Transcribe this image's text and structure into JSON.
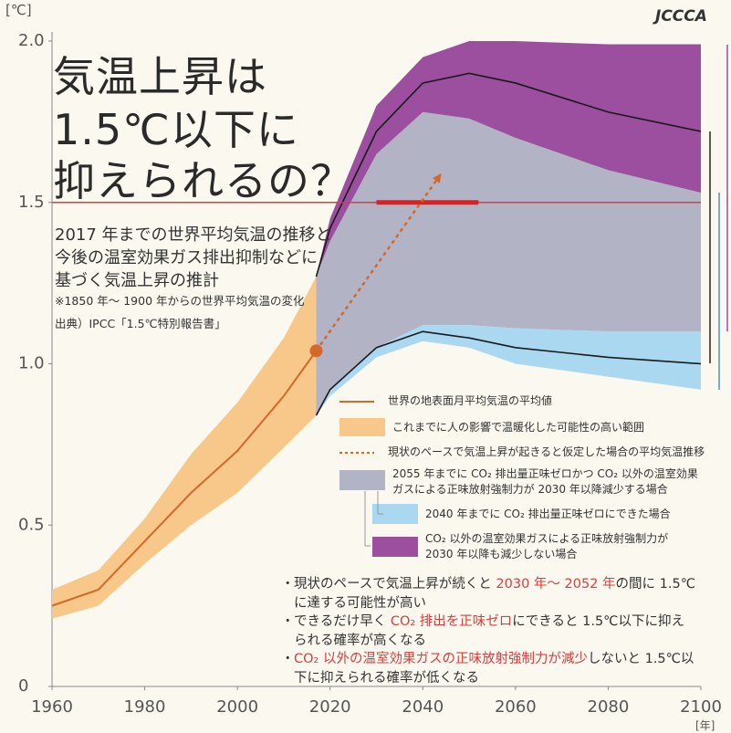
{
  "logo": "JCCCA",
  "chart_data": {
    "type": "line",
    "title": [
      "気温上昇は",
      "1.5℃以下に",
      "抑えられるの？"
    ],
    "subtitle": [
      "2017 年までの世界平均気温の推移と",
      "今後の温室効果ガス排出抑制などに",
      "基づく気温上昇の推計"
    ],
    "note": "※1850 年～ 1900 年からの世界平均気温の変化",
    "source": "出典）IPCC「1.5℃特別報告書」",
    "y_unit": "[℃]",
    "x_unit": "[年]",
    "xlim": [
      1960,
      2100
    ],
    "xticks": [
      1960,
      1980,
      2000,
      2020,
      2040,
      2060,
      2080,
      2100
    ],
    "ylim": [
      0,
      2
    ],
    "yticks": [
      0,
      0.5,
      {
        "value": 1,
        "label": "1.0"
      },
      1.5,
      {
        "value": 2,
        "label": "2.0"
      }
    ],
    "series": [
      {
        "name": "世界の地表面月平均気温の平均値",
        "color": "#d2692a",
        "x": [
          1960,
          1970,
          1980,
          1990,
          2000,
          2010,
          2017
        ],
        "values": [
          0.25,
          0.3,
          0.45,
          0.6,
          0.73,
          0.9,
          1.04
        ]
      },
      {
        "name": "現状のペースで気温上昇が起きると仮定した場合の平均気温推移",
        "color": "#d2692a",
        "x": [
          2017,
          2044
        ],
        "values": [
          1.04,
          1.59
        ]
      }
    ],
    "bands": [
      {
        "name": "これまでに人の影響で温暖化した可能性の高い範囲",
        "color": "#f8c88a",
        "x": [
          1960,
          1970,
          1980,
          1990,
          2000,
          2010,
          2017
        ],
        "lower": [
          0.21,
          0.25,
          0.38,
          0.5,
          0.6,
          0.74,
          0.84
        ],
        "upper": [
          0.3,
          0.36,
          0.52,
          0.72,
          0.88,
          1.08,
          1.27
        ]
      },
      {
        "name": "2055 年までに CO₂ 排出量正味ゼロかつ CO₂ 以外の温室効果ガスによる正味放射強制力が 2030 年以降減少する場合",
        "color": "#b2b3c4",
        "x": [
          2017,
          2020,
          2030,
          2040,
          2050,
          2060,
          2080,
          2100
        ],
        "lower": [
          0.84,
          0.92,
          1.05,
          1.12,
          1.12,
          1.11,
          1.1,
          1.1
        ],
        "upper": [
          1.27,
          1.38,
          1.65,
          1.78,
          1.76,
          1.7,
          1.6,
          1.53
        ]
      },
      {
        "name": "2040 年までに CO₂ 排出量正味ゼロにできた場合",
        "color": "#a9d8f0",
        "x": [
          2017,
          2020,
          2030,
          2040,
          2050,
          2060,
          2080,
          2100
        ],
        "lower": [
          0.84,
          0.9,
          1.02,
          1.07,
          1.05,
          1.0,
          0.96,
          0.92
        ],
        "upper": [
          0.84,
          0.92,
          1.05,
          1.12,
          1.12,
          1.11,
          1.1,
          1.1
        ]
      },
      {
        "name": "CO₂ 以外の温室効果ガスによる正味放射強制力が 2030 年以降も減少しない場合",
        "color": "#9b4f9e",
        "x": [
          2017,
          2020,
          2030,
          2040,
          2050,
          2060,
          2080,
          2100
        ],
        "lower": [
          1.27,
          1.38,
          1.65,
          1.78,
          1.76,
          1.7,
          1.6,
          1.53
        ],
        "upper": [
          1.27,
          1.45,
          1.8,
          1.95,
          2.0,
          2.0,
          1.99,
          1.99
        ]
      }
    ],
    "boundary_lines": [
      {
        "color": "#1a1a1a",
        "x": [
          2017,
          2020,
          2030,
          2040,
          2050,
          2060,
          2080,
          2100
        ],
        "values": [
          1.27,
          1.42,
          1.72,
          1.87,
          1.9,
          1.87,
          1.78,
          1.72
        ]
      },
      {
        "color": "#1a1a1a",
        "x": [
          2017,
          2020,
          2030,
          2040,
          2050,
          2060,
          2080,
          2100
        ],
        "values": [
          0.84,
          0.92,
          1.05,
          1.1,
          1.08,
          1.05,
          1.02,
          1.0
        ]
      }
    ],
    "reference_line": {
      "value": 1.5,
      "color": "#e03a3a"
    },
    "highlight_range": {
      "x": [
        2030,
        2052
      ],
      "color": "#e02020"
    },
    "bullets": [
      [
        {
          "text": "現状のペースで気温上昇が続くと "
        },
        {
          "text": "2030 年～ 2052 年",
          "color": "#e03a3a"
        },
        {
          "text": "の間に 1.5℃に達する可能性が高い"
        }
      ],
      [
        {
          "text": "できるだけ早く "
        },
        {
          "text": "CO₂ 排出を正味ゼロ",
          "color": "#e03a3a"
        },
        {
          "text": "にできると 1.5℃以下に抑えられる確率が高くなる"
        }
      ],
      [
        {
          "text": "CO₂ 以外の温室効果ガスの正味放射強制力が減少",
          "color": "#e03a3a"
        },
        {
          "text": "しないと 1.5℃以下に抑えられる確率が低くなる"
        }
      ]
    ]
  }
}
